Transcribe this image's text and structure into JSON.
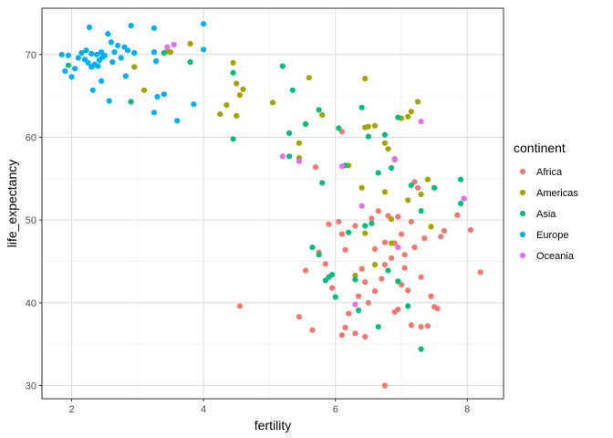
{
  "chart_data": {
    "type": "scatter",
    "title": "",
    "xlabel": "fertility",
    "ylabel": "life_expectancy",
    "xlim": [
      1.55,
      8.55
    ],
    "ylim": [
      28.4,
      75.6
    ],
    "xticks": [
      2,
      4,
      6,
      8
    ],
    "yticks": [
      30,
      40,
      50,
      60,
      70
    ],
    "grid": true,
    "legend": {
      "title": "continent",
      "placement": "right"
    },
    "colors": {
      "Africa": "#F8766D",
      "Americas": "#A3A500",
      "Asia": "#00BF7D",
      "Europe": "#00B0F6",
      "Oceania": "#E76BF3"
    },
    "series": [
      {
        "name": "Africa",
        "points": [
          [
            4.55,
            39.6
          ],
          [
            5.55,
            61.6
          ],
          [
            5.7,
            56.4
          ],
          [
            5.9,
            49.5
          ],
          [
            5.95,
            41.8
          ],
          [
            6.05,
            49.8
          ],
          [
            6.1,
            60.7
          ],
          [
            6.1,
            48.3
          ],
          [
            6.15,
            46.4
          ],
          [
            6.3,
            49.3
          ],
          [
            6.35,
            40.8
          ],
          [
            6.45,
            42.5
          ],
          [
            6.55,
            50.2
          ],
          [
            6.6,
            46.5
          ],
          [
            6.65,
            51.1
          ],
          [
            6.75,
            47.3
          ],
          [
            6.75,
            44.6
          ],
          [
            6.8,
            50.5
          ],
          [
            6.85,
            45.4
          ],
          [
            6.9,
            38.9
          ],
          [
            6.95,
            50.4
          ],
          [
            7.0,
            48.3
          ],
          [
            7.05,
            44.2
          ],
          [
            7.1,
            41.5
          ],
          [
            7.15,
            49.8
          ],
          [
            7.2,
            54.6
          ],
          [
            7.25,
            53.9
          ],
          [
            7.3,
            43.1
          ],
          [
            7.35,
            47.8
          ],
          [
            7.4,
            37.2
          ],
          [
            7.45,
            40.8
          ],
          [
            7.55,
            39.3
          ],
          [
            7.6,
            48.0
          ],
          [
            7.65,
            48.7
          ],
          [
            7.85,
            50.6
          ],
          [
            8.05,
            48.8
          ],
          [
            8.2,
            43.7
          ],
          [
            5.45,
            38.3
          ],
          [
            5.65,
            36.7
          ],
          [
            5.55,
            43.9
          ],
          [
            6.1,
            36.1
          ],
          [
            6.3,
            36.3
          ],
          [
            6.45,
            35.9
          ],
          [
            6.75,
            30.0
          ],
          [
            6.95,
            39.2
          ],
          [
            7.15,
            37.3
          ],
          [
            7.3,
            37.1
          ],
          [
            5.85,
            44.7
          ],
          [
            6.2,
            38.7
          ],
          [
            6.6,
            41.4
          ],
          [
            6.7,
            42.9
          ],
          [
            7.05,
            45.8
          ],
          [
            6.15,
            37.0
          ],
          [
            6.5,
            40.0
          ],
          [
            6.9,
            47.2
          ],
          [
            7.5,
            39.5
          ],
          [
            5.75,
            46.1
          ],
          [
            6.4,
            44.1
          ],
          [
            7.0,
            42.2
          ],
          [
            7.2,
            46.7
          ]
        ]
      },
      {
        "name": "Americas",
        "points": [
          [
            2.95,
            68.5
          ],
          [
            3.1,
            65.7
          ],
          [
            3.45,
            70.4
          ],
          [
            3.5,
            70.3
          ],
          [
            3.8,
            71.3
          ],
          [
            4.25,
            62.8
          ],
          [
            4.35,
            63.9
          ],
          [
            4.45,
            69.0
          ],
          [
            4.5,
            62.6
          ],
          [
            4.5,
            66.5
          ],
          [
            4.55,
            65.1
          ],
          [
            4.6,
            65.8
          ],
          [
            5.05,
            64.2
          ],
          [
            5.45,
            59.3
          ],
          [
            5.45,
            57.5
          ],
          [
            5.6,
            67.2
          ],
          [
            5.8,
            62.7
          ],
          [
            6.2,
            56.6
          ],
          [
            6.45,
            67.1
          ],
          [
            6.45,
            61.2
          ],
          [
            6.5,
            61.3
          ],
          [
            6.6,
            61.4
          ],
          [
            6.75,
            59.3
          ],
          [
            6.8,
            58.6
          ],
          [
            7.0,
            62.3
          ],
          [
            7.1,
            62.5
          ],
          [
            7.15,
            63.1
          ],
          [
            7.25,
            64.3
          ],
          [
            6.9,
            57.3
          ],
          [
            6.45,
            48.4
          ],
          [
            6.75,
            53.4
          ],
          [
            6.85,
            50.1
          ],
          [
            7.1,
            52.4
          ],
          [
            7.3,
            53.1
          ],
          [
            7.4,
            54.9
          ],
          [
            7.45,
            49.2
          ],
          [
            6.3,
            43.3
          ],
          [
            6.6,
            44.6
          ],
          [
            6.4,
            53.9
          ],
          [
            6.85,
            47.2
          ]
        ]
      },
      {
        "name": "Asia",
        "points": [
          [
            1.95,
            68.7
          ],
          [
            2.9,
            64.3
          ],
          [
            3.4,
            70.2
          ],
          [
            3.8,
            69.1
          ],
          [
            4.45,
            59.8
          ],
          [
            4.45,
            67.8
          ],
          [
            5.2,
            68.6
          ],
          [
            5.3,
            57.7
          ],
          [
            5.3,
            60.5
          ],
          [
            5.35,
            65.7
          ],
          [
            5.55,
            61.6
          ],
          [
            5.75,
            63.3
          ],
          [
            5.8,
            54.5
          ],
          [
            6.05,
            61.1
          ],
          [
            6.15,
            56.6
          ],
          [
            6.4,
            63.6
          ],
          [
            6.5,
            60.1
          ],
          [
            6.65,
            55.7
          ],
          [
            6.75,
            60.3
          ],
          [
            6.85,
            56.3
          ],
          [
            6.95,
            62.4
          ],
          [
            7.15,
            54.2
          ],
          [
            7.3,
            51.1
          ],
          [
            7.5,
            53.9
          ],
          [
            7.9,
            54.9
          ],
          [
            7.9,
            52.0
          ],
          [
            5.65,
            46.7
          ],
          [
            5.75,
            45.8
          ],
          [
            5.85,
            42.7
          ],
          [
            5.95,
            43.4
          ],
          [
            6.0,
            40.7
          ],
          [
            6.2,
            48.5
          ],
          [
            6.3,
            42.8
          ],
          [
            6.35,
            39.1
          ],
          [
            6.45,
            49.3
          ],
          [
            6.55,
            49.6
          ],
          [
            6.65,
            37.1
          ],
          [
            6.8,
            43.9
          ],
          [
            6.95,
            42.6
          ],
          [
            7.1,
            39.6
          ],
          [
            7.3,
            34.4
          ],
          [
            5.9,
            43.1
          ]
        ]
      },
      {
        "name": "Europe",
        "points": [
          [
            1.85,
            70.0
          ],
          [
            1.9,
            68.0
          ],
          [
            1.95,
            69.9
          ],
          [
            2.0,
            67.3
          ],
          [
            2.05,
            68.3
          ],
          [
            2.1,
            69.6
          ],
          [
            2.15,
            70.2
          ],
          [
            2.2,
            69.4
          ],
          [
            2.22,
            70.5
          ],
          [
            2.25,
            69.0
          ],
          [
            2.27,
            73.3
          ],
          [
            2.3,
            70.1
          ],
          [
            2.32,
            65.7
          ],
          [
            2.35,
            68.8
          ],
          [
            2.38,
            70.0
          ],
          [
            2.4,
            68.6
          ],
          [
            2.42,
            69.3
          ],
          [
            2.45,
            70.3
          ],
          [
            2.47,
            69.7
          ],
          [
            2.5,
            69.9
          ],
          [
            2.55,
            72.5
          ],
          [
            2.57,
            64.4
          ],
          [
            2.6,
            71.5
          ],
          [
            2.62,
            69.1
          ],
          [
            2.65,
            70.3
          ],
          [
            2.7,
            71.1
          ],
          [
            2.75,
            69.6
          ],
          [
            2.8,
            70.9
          ],
          [
            2.82,
            67.4
          ],
          [
            2.85,
            70.5
          ],
          [
            2.9,
            73.5
          ],
          [
            2.95,
            70.2
          ],
          [
            3.25,
            73.2
          ],
          [
            3.25,
            70.3
          ],
          [
            3.28,
            69.2
          ],
          [
            3.3,
            64.9
          ],
          [
            3.25,
            63.0
          ],
          [
            3.4,
            65.2
          ],
          [
            3.6,
            62.0
          ],
          [
            3.85,
            64.0
          ],
          [
            4.0,
            73.7
          ],
          [
            4.0,
            70.6
          ],
          [
            2.3,
            68.5
          ],
          [
            2.45,
            66.8
          ]
        ]
      },
      {
        "name": "Oceania",
        "points": [
          [
            3.45,
            70.9
          ],
          [
            3.55,
            71.2
          ],
          [
            5.2,
            57.7
          ],
          [
            5.45,
            57.1
          ],
          [
            6.1,
            56.5
          ],
          [
            6.9,
            57.4
          ],
          [
            6.4,
            51.7
          ],
          [
            7.3,
            61.9
          ],
          [
            7.95,
            52.6
          ],
          [
            6.95,
            46.7
          ],
          [
            6.3,
            39.8
          ]
        ]
      }
    ]
  }
}
